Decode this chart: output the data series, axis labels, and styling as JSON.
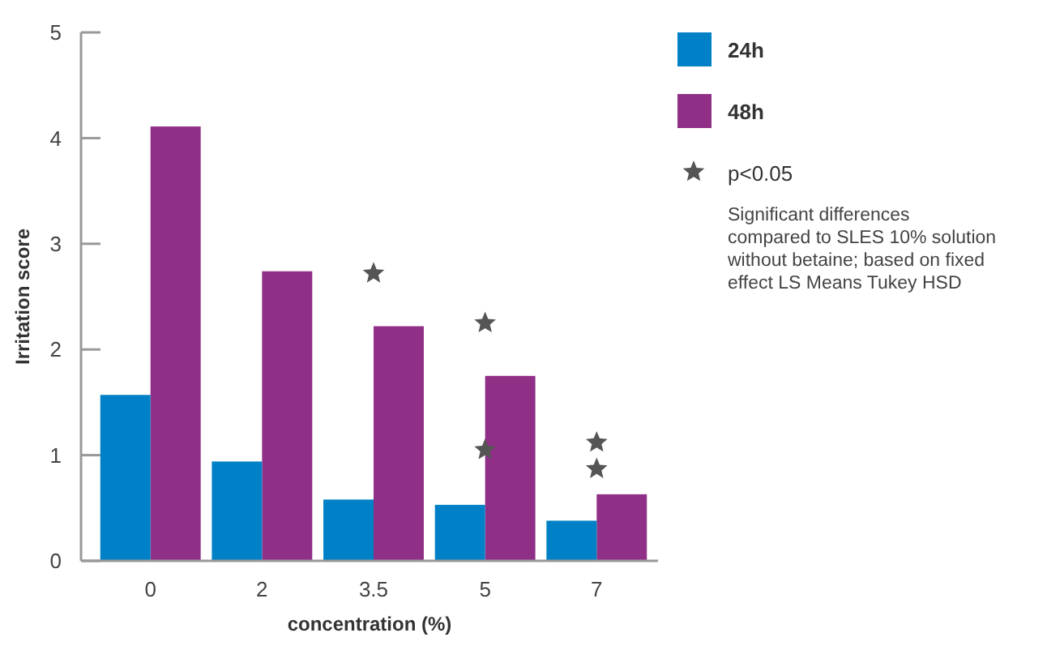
{
  "chart_data": {
    "type": "bar",
    "xlabel": "concentration (%)",
    "ylabel": "Irritation score",
    "categories": [
      "0",
      "2",
      "3.5",
      "5",
      "7"
    ],
    "ylim": [
      0,
      5
    ],
    "yticks": [
      0,
      1,
      2,
      3,
      4,
      5
    ],
    "grid": false,
    "legend": "top right",
    "series": [
      {
        "name": "24h",
        "color": "#0080c6",
        "values": [
          1.57,
          0.94,
          0.58,
          0.53,
          0.38
        ]
      },
      {
        "name": "48h",
        "color": "#902f86",
        "values": [
          4.11,
          2.74,
          2.22,
          1.75,
          0.63
        ]
      },
      {
        "name": "p<0.05",
        "type": "scatter",
        "marker": "star",
        "color": "#555555",
        "x": [
          "3.5",
          "5",
          "5",
          "7",
          "7"
        ],
        "values": [
          2.72,
          2.25,
          1.05,
          0.87,
          1.12
        ]
      }
    ],
    "annotations": [
      "Significant differences compared to SLES 10% solution without betaine; based on fixed effect LS Means Tukey HSD"
    ]
  }
}
